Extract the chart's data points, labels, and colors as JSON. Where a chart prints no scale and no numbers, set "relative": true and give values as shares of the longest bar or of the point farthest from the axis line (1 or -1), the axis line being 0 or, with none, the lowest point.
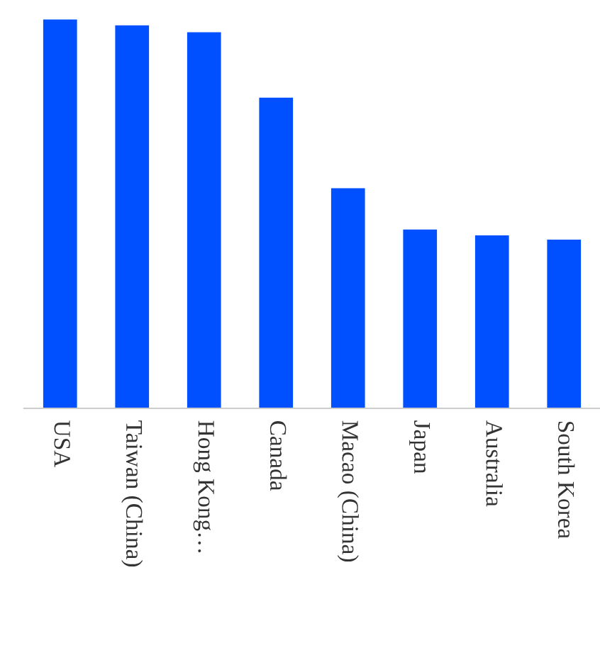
{
  "chart_data": {
    "type": "bar",
    "relative": true,
    "categories": [
      "USA",
      "Taiwan (China)",
      "Hong Kong…",
      "Canada",
      "Macao (China)",
      "Japan",
      "Australia",
      "South Korea"
    ],
    "values": [
      1,
      0.985,
      0.967,
      0.799,
      0.566,
      0.46,
      0.445,
      0.434
    ],
    "color": "#0050ff",
    "grid": false,
    "legend": false
  }
}
